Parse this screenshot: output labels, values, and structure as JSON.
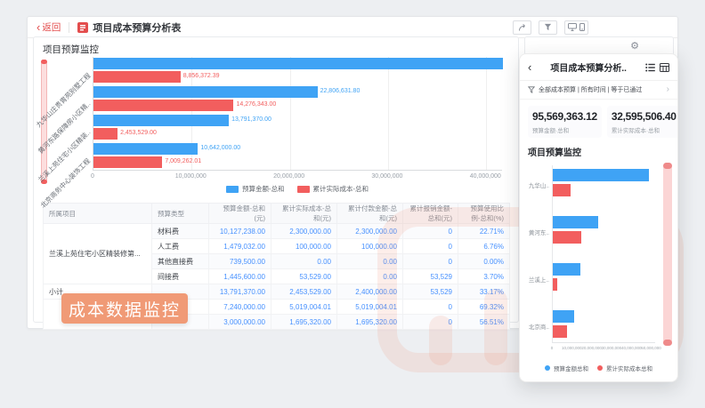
{
  "app": {
    "back_label": "返回",
    "title": "项目成本预算分析表"
  },
  "icons": {
    "toolbar": [
      "share-icon",
      "filter-icon",
      "monitor-icon",
      "phone-icon"
    ],
    "widget": [
      "gear-icon"
    ],
    "panel": [
      "back-icon",
      "list-view-icon",
      "grid-view-icon",
      "funnel-icon",
      "chevron-right-icon"
    ]
  },
  "main": {
    "section_title": "项目预算监控",
    "overlay_badge": "成本数据监控",
    "table": {
      "headers": [
        "所属项目",
        "预算类型",
        "预算金额-总和(元)",
        "累计实际成本-总和(元)",
        "累计付款金额-总和(元)",
        "累计报销金额-总和(元)",
        "预算使用比例-总和(%)"
      ],
      "rows": [
        {
          "project": "兰溪上苑住宅小区精装修第...",
          "project_span": 4,
          "type": "材料费",
          "budget": "10,127,238.00",
          "actual": "2,300,000.00",
          "payment": "2,300,000.00",
          "reimburse": "0",
          "ratio": "22.71%"
        },
        {
          "type": "人工费",
          "budget": "1,479,032.00",
          "actual": "100,000.00",
          "payment": "100,000.00",
          "reimburse": "0",
          "ratio": "6.76%"
        },
        {
          "type": "其他直接费",
          "budget": "739,500.00",
          "actual": "0.00",
          "payment": "0.00",
          "reimburse": "0",
          "ratio": "0.00%"
        },
        {
          "type": "间接费",
          "budget": "1,445,600.00",
          "actual": "53,529.00",
          "payment": "0.00",
          "reimburse": "53,529",
          "ratio": "3.70%"
        },
        {
          "project": "小计",
          "project_span": 1,
          "type": "",
          "budget": "13,791,370.00",
          "actual": "2,453,529.00",
          "payment": "2,400,000.00",
          "reimburse": "53,529",
          "ratio": "33.17%"
        },
        {
          "project": "",
          "project_span": 2,
          "type": "材料费",
          "budget": "7,240,000.00",
          "actual": "5,019,004.01",
          "payment": "5,019,004.01",
          "reimburse": "0",
          "ratio": "69.32%"
        },
        {
          "type": "",
          "budget": "3,000,000.00",
          "actual": "1,695,320.00",
          "payment": "1,695,320.00",
          "reimburse": "0",
          "ratio": "56.51%"
        }
      ]
    }
  },
  "panel": {
    "title": "项目成本预算分析..",
    "filter_text": "全部成本预算 | 所有时间 | 等于已通过",
    "kpis": [
      {
        "value": "95,569,363.12",
        "label": "预算金额·总和"
      },
      {
        "value": "32,595,506.40",
        "label": "累计实际成本·总和"
      }
    ],
    "section_title": "项目预算监控"
  },
  "colors": {
    "primary_blue": "#3fa3f5",
    "primary_red": "#f25e5e",
    "link_blue": "#4791ff",
    "badge_orange": "#f09a76",
    "back_red": "#e34d4d"
  },
  "chart_data": [
    {
      "id": "main-budget-chart",
      "type": "bar",
      "orientation": "horizontal",
      "title": "项目预算监控",
      "categories": [
        "九华山庄贵胄苑别墅工程",
        "黄河东路保障房小区精..",
        "兰溪上苑住宅小区精装..",
        "北京商务中心装饰工程"
      ],
      "series": [
        {
          "name": "预算金额-总和",
          "color": "#3fa3f5",
          "values": [
            48329361.32,
            22806631.8,
            13791370,
            10642000
          ],
          "value_labels": [
            null,
            "22,806,631.80",
            "13,791,370.00",
            "10,642,000.00"
          ]
        },
        {
          "name": "累计实际成本-总和",
          "color": "#f25e5e",
          "values": [
            8856372.39,
            14276343,
            2453529,
            7009262.01
          ],
          "value_labels": [
            "8,856,372.39",
            "14,276,343.00",
            "2,453,529.00",
            "7,009,262.01"
          ]
        }
      ],
      "xlim": [
        0,
        41700000
      ],
      "xtick_values": [
        0,
        10000000,
        20000000,
        30000000,
        40000000
      ],
      "xticks": [
        "0",
        "10,000,000",
        "20,000,000",
        "30,000,000",
        "40,000,000"
      ],
      "grid": true,
      "legend_position": "bottom"
    },
    {
      "id": "panel-budget-chart",
      "type": "bar",
      "orientation": "horizontal",
      "title": "项目预算监控",
      "categories": [
        "九华山..",
        "黄河东..",
        "兰溪上..",
        "北京商.."
      ],
      "series": [
        {
          "name": "预算金额总和",
          "color": "#3fa3f5",
          "values": [
            48329361.32,
            22806631.8,
            13791370,
            10642000
          ]
        },
        {
          "name": "累计实际成本总和",
          "color": "#f25e5e",
          "values": [
            8856372.39,
            14276343,
            2453529,
            7009262.01
          ]
        }
      ],
      "xlim": [
        0,
        52000000
      ],
      "xtick_values": [
        0,
        10000000,
        20000000,
        30000000,
        40000000,
        50000000
      ],
      "xticks": [
        "0",
        "10,000,000",
        "20,000,000",
        "30,000,000",
        "40,000,000",
        "50,000,000"
      ],
      "grid": false,
      "legend_position": "bottom"
    }
  ]
}
